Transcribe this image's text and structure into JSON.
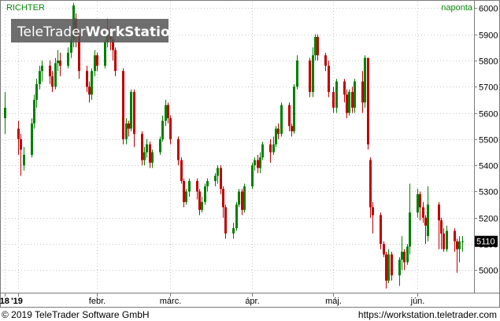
{
  "header": {
    "symbol": "RICHTER",
    "interval": "naponta"
  },
  "watermark": {
    "part1": "TeleTrader",
    "part2": "WorkStation"
  },
  "footer": {
    "copyright": "© 2019 TeleTrader Software GmbH",
    "url": "https://workstation.teletrader.com"
  },
  "colors": {
    "up": "#008000",
    "down": "#c00000",
    "grid": "#c8c8c8",
    "label": "#0b8a0b"
  },
  "chart_data": {
    "type": "candlestick",
    "ylim": [
      4920,
      6025
    ],
    "yticks": [
      5000,
      5100,
      5200,
      5300,
      5400,
      5500,
      5600,
      5700,
      5800,
      5900,
      6000
    ],
    "last_price": "5110",
    "xlim": [
      "2018-12-27",
      "2019-06-24"
    ],
    "x_ticks": [
      {
        "date": "2018-12-28",
        "label": "'18"
      },
      {
        "date": "2019-01-02",
        "label": "'19"
      },
      {
        "date": "2019-02-01",
        "label": "febr."
      },
      {
        "date": "2019-03-01",
        "label": "márc."
      },
      {
        "date": "2019-04-01",
        "label": "ápr."
      },
      {
        "date": "2019-05-02",
        "label": "máj."
      },
      {
        "date": "2019-06-03",
        "label": "jún."
      }
    ],
    "candles": [
      [
        "2018-12-28",
        5580,
        5620,
        5520,
        5680
      ],
      [
        "2019-01-02",
        5540,
        5500,
        5440,
        5570
      ],
      [
        "2019-01-03",
        5500,
        5460,
        5360,
        5520
      ],
      [
        "2019-01-04",
        5400,
        5440,
        5380,
        5470
      ],
      [
        "2019-01-07",
        5440,
        5560,
        5430,
        5580
      ],
      [
        "2019-01-08",
        5560,
        5650,
        5540,
        5670
      ],
      [
        "2019-01-09",
        5650,
        5710,
        5620,
        5730
      ],
      [
        "2019-01-10",
        5710,
        5760,
        5690,
        5780
      ],
      [
        "2019-01-11",
        5760,
        5780,
        5720,
        5800
      ],
      [
        "2019-01-14",
        5780,
        5740,
        5710,
        5800
      ],
      [
        "2019-01-15",
        5740,
        5700,
        5680,
        5760
      ],
      [
        "2019-01-16",
        5700,
        5790,
        5690,
        5810
      ],
      [
        "2019-01-17",
        5790,
        5800,
        5760,
        5840
      ],
      [
        "2019-01-18",
        5800,
        5780,
        5740,
        5830
      ],
      [
        "2019-01-21",
        5780,
        5830,
        5770,
        5850
      ],
      [
        "2019-01-22",
        5830,
        5880,
        5810,
        5900
      ],
      [
        "2019-01-23",
        5880,
        6010,
        5850,
        6020
      ],
      [
        "2019-01-24",
        5960,
        5900,
        5850,
        5980
      ],
      [
        "2019-01-25",
        5900,
        5760,
        5730,
        5910
      ],
      [
        "2019-01-28",
        5760,
        5700,
        5680,
        5780
      ],
      [
        "2019-01-29",
        5700,
        5670,
        5640,
        5720
      ],
      [
        "2019-01-30",
        5670,
        5760,
        5650,
        5770
      ],
      [
        "2019-01-31",
        5760,
        5820,
        5740,
        5840
      ],
      [
        "2019-02-01",
        5820,
        5780,
        5760,
        5830
      ],
      [
        "2019-02-04",
        5780,
        5870,
        5770,
        5880
      ],
      [
        "2019-02-05",
        5870,
        5910,
        5850,
        5960
      ],
      [
        "2019-02-06",
        5910,
        5880,
        5840,
        5930
      ],
      [
        "2019-02-07",
        5880,
        5840,
        5800,
        5890
      ],
      [
        "2019-02-08",
        5840,
        5760,
        5740,
        5850
      ],
      [
        "2019-02-11",
        5760,
        5500,
        5480,
        5770
      ],
      [
        "2019-02-12",
        5500,
        5560,
        5480,
        5580
      ],
      [
        "2019-02-13",
        5560,
        5540,
        5510,
        5570
      ],
      [
        "2019-02-14",
        5540,
        5680,
        5530,
        5690
      ],
      [
        "2019-02-15",
        5680,
        5520,
        5470,
        5690
      ],
      [
        "2019-02-18",
        5520,
        5420,
        5400,
        5530
      ],
      [
        "2019-02-19",
        5420,
        5450,
        5400,
        5470
      ],
      [
        "2019-02-20",
        5450,
        5480,
        5430,
        5500
      ],
      [
        "2019-02-21",
        5480,
        5410,
        5390,
        5490
      ],
      [
        "2019-02-22",
        5410,
        5450,
        5390,
        5460
      ],
      [
        "2019-02-25",
        5450,
        5500,
        5440,
        5510
      ],
      [
        "2019-02-26",
        5500,
        5570,
        5490,
        5590
      ],
      [
        "2019-02-27",
        5570,
        5630,
        5550,
        5650
      ],
      [
        "2019-02-28",
        5630,
        5580,
        5560,
        5640
      ],
      [
        "2019-03-01",
        5580,
        5500,
        5480,
        5590
      ],
      [
        "2019-03-04",
        5500,
        5420,
        5400,
        5510
      ],
      [
        "2019-03-05",
        5420,
        5340,
        5330,
        5430
      ],
      [
        "2019-03-06",
        5340,
        5260,
        5240,
        5350
      ],
      [
        "2019-03-07",
        5260,
        5300,
        5250,
        5310
      ],
      [
        "2019-03-08",
        5300,
        5340,
        5280,
        5350
      ],
      [
        "2019-03-11",
        5340,
        5300,
        5270,
        5350
      ],
      [
        "2019-03-12",
        5300,
        5230,
        5210,
        5310
      ],
      [
        "2019-03-13",
        5230,
        5260,
        5220,
        5280
      ],
      [
        "2019-03-14",
        5260,
        5320,
        5250,
        5330
      ],
      [
        "2019-03-15",
        5320,
        5340,
        5300,
        5350
      ],
      [
        "2019-03-18",
        5340,
        5360,
        5320,
        5370
      ],
      [
        "2019-03-19",
        5360,
        5390,
        5330,
        5400
      ],
      [
        "2019-03-20",
        5390,
        5310,
        5290,
        5400
      ],
      [
        "2019-03-21",
        5310,
        5240,
        5200,
        5320
      ],
      [
        "2019-03-22",
        5240,
        5140,
        5120,
        5250
      ],
      [
        "2019-03-25",
        5140,
        5160,
        5120,
        5180
      ],
      [
        "2019-03-26",
        5160,
        5250,
        5150,
        5260
      ],
      [
        "2019-03-27",
        5250,
        5300,
        5240,
        5310
      ],
      [
        "2019-03-28",
        5300,
        5230,
        5210,
        5310
      ],
      [
        "2019-03-29",
        5230,
        5320,
        5220,
        5330
      ],
      [
        "2019-04-01",
        5320,
        5400,
        5310,
        5410
      ],
      [
        "2019-04-02",
        5400,
        5420,
        5380,
        5430
      ],
      [
        "2019-04-03",
        5420,
        5390,
        5370,
        5440
      ],
      [
        "2019-04-04",
        5390,
        5430,
        5370,
        5450
      ],
      [
        "2019-04-05",
        5430,
        5480,
        5420,
        5490
      ],
      [
        "2019-04-08",
        5480,
        5450,
        5410,
        5500
      ],
      [
        "2019-04-09",
        5450,
        5480,
        5440,
        5510
      ],
      [
        "2019-04-10",
        5480,
        5540,
        5470,
        5550
      ],
      [
        "2019-04-11",
        5540,
        5520,
        5500,
        5560
      ],
      [
        "2019-04-12",
        5520,
        5630,
        5510,
        5640
      ],
      [
        "2019-04-15",
        5630,
        5550,
        5530,
        5640
      ],
      [
        "2019-04-16",
        5550,
        5530,
        5510,
        5560
      ],
      [
        "2019-04-17",
        5530,
        5700,
        5520,
        5710
      ],
      [
        "2019-04-18",
        5700,
        5800,
        5690,
        5820
      ],
      [
        "2019-04-23",
        5800,
        5680,
        5660,
        5810
      ],
      [
        "2019-04-24",
        5680,
        5820,
        5660,
        5850
      ],
      [
        "2019-04-25",
        5820,
        5890,
        5800,
        5900
      ],
      [
        "2019-04-26",
        5890,
        5820,
        5800,
        5900
      ],
      [
        "2019-04-29",
        5820,
        5780,
        5760,
        5830
      ],
      [
        "2019-04-30",
        5780,
        5680,
        5660,
        5800
      ],
      [
        "2019-05-02",
        5680,
        5620,
        5600,
        5700
      ],
      [
        "2019-05-03",
        5620,
        5720,
        5600,
        5730
      ],
      [
        "2019-05-06",
        5720,
        5670,
        5640,
        5730
      ],
      [
        "2019-05-07",
        5670,
        5600,
        5580,
        5690
      ],
      [
        "2019-05-08",
        5600,
        5680,
        5590,
        5690
      ],
      [
        "2019-05-09",
        5680,
        5620,
        5600,
        5700
      ],
      [
        "2019-05-10",
        5620,
        5720,
        5600,
        5730
      ],
      [
        "2019-05-13",
        5720,
        5640,
        5600,
        5760
      ],
      [
        "2019-05-14",
        5640,
        5810,
        5620,
        5820
      ],
      [
        "2019-05-15",
        5810,
        5480,
        5460,
        5810
      ],
      [
        "2019-05-16",
        5420,
        5240,
        5200,
        5430
      ],
      [
        "2019-05-17",
        5240,
        5210,
        5140,
        5260
      ],
      [
        "2019-05-20",
        5210,
        5100,
        5080,
        5220
      ],
      [
        "2019-05-21",
        5100,
        5060,
        5050,
        5110
      ],
      [
        "2019-05-22",
        5060,
        4960,
        4930,
        5070
      ],
      [
        "2019-05-23",
        4960,
        5060,
        4950,
        5080
      ],
      [
        "2019-05-24",
        5060,
        4980,
        4960,
        5070
      ],
      [
        "2019-05-27",
        4980,
        5040,
        4940,
        5050
      ],
      [
        "2019-05-28",
        5040,
        5070,
        5000,
        5130
      ],
      [
        "2019-05-29",
        5070,
        5030,
        5000,
        5080
      ],
      [
        "2019-05-30",
        5030,
        5090,
        5020,
        5100
      ],
      [
        "2019-05-31",
        5090,
        5220,
        5060,
        5330
      ],
      [
        "2019-06-03",
        5220,
        5290,
        5200,
        5310
      ],
      [
        "2019-06-04",
        5290,
        5240,
        5190,
        5300
      ],
      [
        "2019-06-05",
        5240,
        5200,
        5180,
        5260
      ],
      [
        "2019-06-06",
        5200,
        5170,
        5100,
        5210
      ],
      [
        "2019-06-07",
        5130,
        5250,
        5110,
        5320
      ],
      [
        "2019-06-11",
        5250,
        5190,
        5080,
        5260
      ],
      [
        "2019-06-12",
        5190,
        5140,
        5080,
        5200
      ],
      [
        "2019-06-13",
        5140,
        5080,
        5070,
        5160
      ],
      [
        "2019-06-14",
        5080,
        5150,
        5070,
        5170
      ],
      [
        "2019-06-17",
        5150,
        5110,
        5070,
        5160
      ],
      [
        "2019-06-18",
        5110,
        5080,
        4990,
        5120
      ],
      [
        "2019-06-19",
        5080,
        5110,
        5030,
        5130
      ],
      [
        "2019-06-20",
        5110,
        5110,
        5070,
        5130
      ]
    ]
  }
}
